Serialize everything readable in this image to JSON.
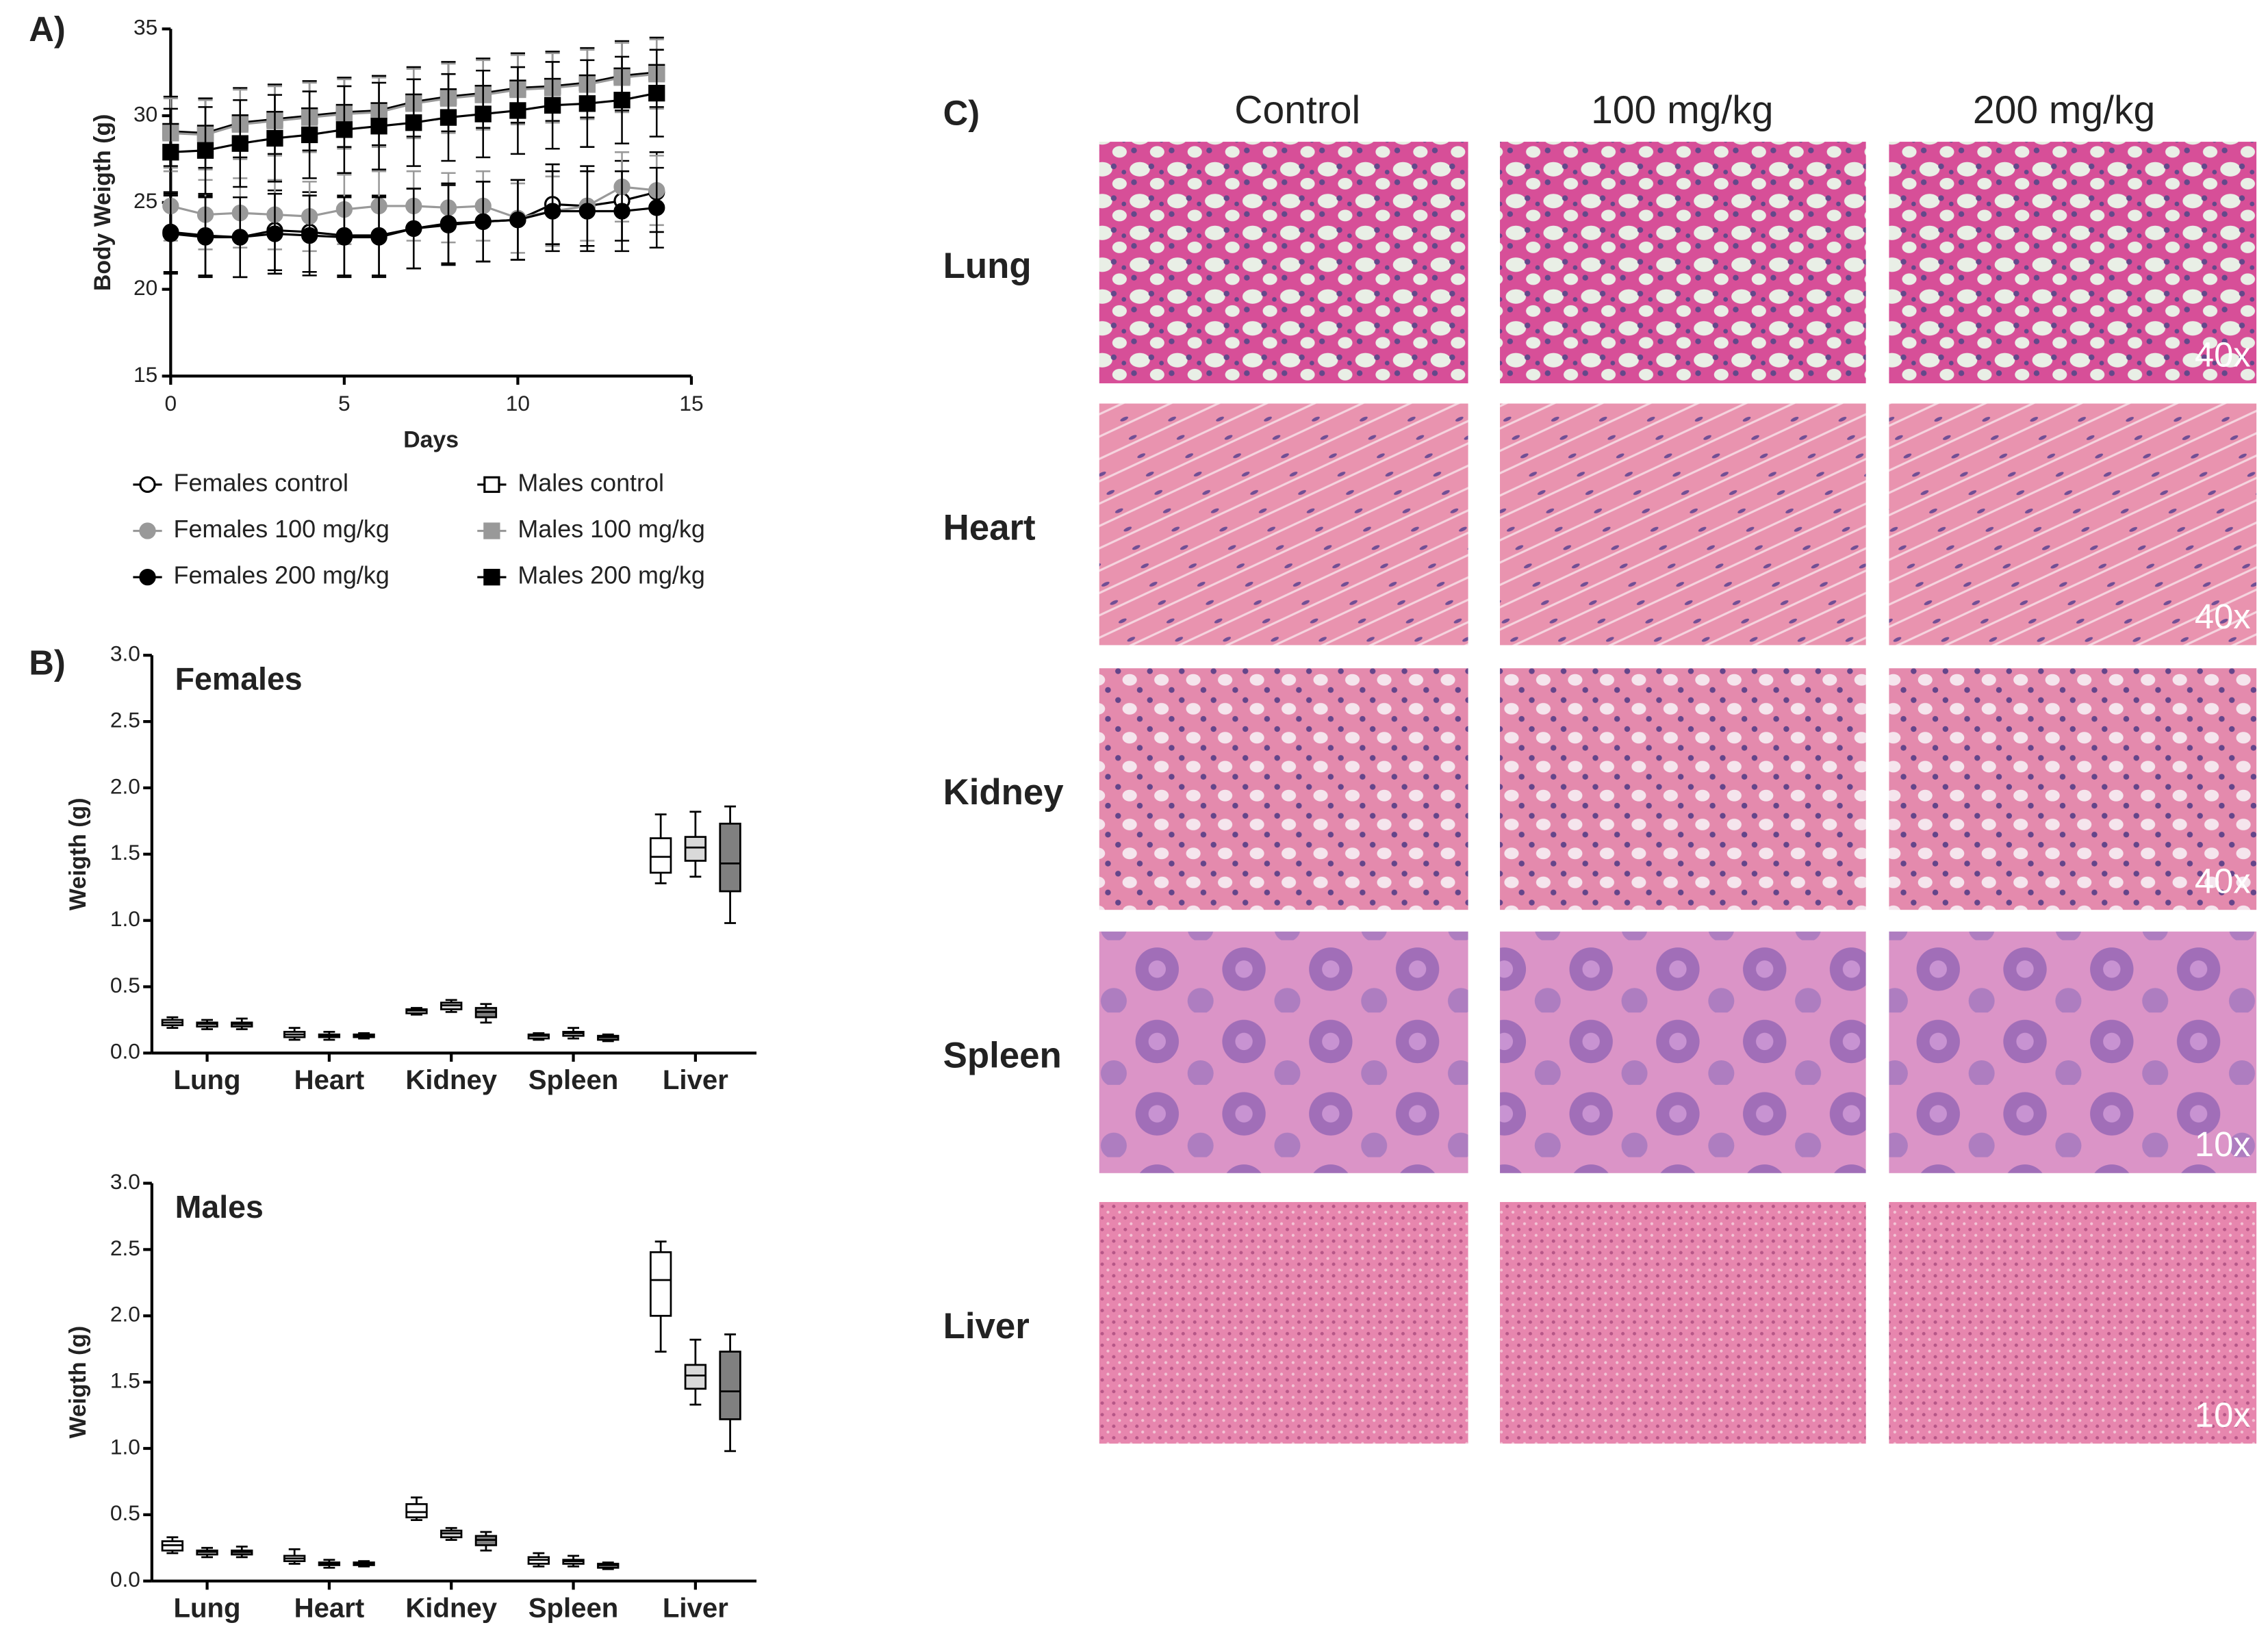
{
  "panel_labels": [
    "A)",
    "B)",
    "C)"
  ],
  "chart_data": [
    {
      "type": "line",
      "xlabel": "Days",
      "ylabel": "Body Weigth (g)",
      "x": [
        0,
        1,
        2,
        3,
        4,
        5,
        6,
        7,
        8,
        9,
        10,
        11,
        12,
        13,
        14
      ],
      "xlim": [
        0,
        15
      ],
      "xticks": [
        0,
        5,
        10,
        15
      ],
      "ylim": [
        15,
        35
      ],
      "yticks": [
        15,
        20,
        25,
        30,
        35
      ],
      "legend": "below",
      "series": [
        {
          "name": "Females control",
          "color": "#000000",
          "marker": "circle",
          "filled": false,
          "values": [
            23.3,
            23.1,
            23.0,
            23.4,
            23.3,
            23.1,
            23.1,
            23.5,
            23.7,
            23.9,
            24.0,
            24.9,
            24.8,
            25.1,
            25.6
          ],
          "errors": [
            2.3,
            2.3,
            2.3,
            2.3,
            2.3,
            2.3,
            2.3,
            2.3,
            2.3,
            2.3,
            2.3,
            2.3,
            2.3,
            2.3,
            2.3
          ]
        },
        {
          "name": "Females 100 mg/kg",
          "color": "#999999",
          "marker": "circle",
          "filled": true,
          "values": [
            24.8,
            24.3,
            24.4,
            24.3,
            24.2,
            24.6,
            24.8,
            24.8,
            24.7,
            24.8,
            24.1,
            24.5,
            24.8,
            25.9,
            25.7
          ],
          "errors": [
            2.0,
            2.0,
            2.0,
            2.0,
            2.0,
            2.0,
            2.0,
            2.0,
            2.0,
            2.0,
            2.0,
            2.0,
            2.0,
            2.0,
            2.0
          ]
        },
        {
          "name": "Females 200 mg/kg",
          "color": "#000000",
          "marker": "circle",
          "filled": true,
          "values": [
            23.2,
            23.0,
            23.0,
            23.2,
            23.1,
            23.0,
            23.0,
            23.5,
            23.8,
            23.9,
            24.0,
            24.5,
            24.5,
            24.5,
            24.7
          ],
          "errors": [
            2.3,
            2.3,
            2.3,
            2.3,
            2.3,
            2.3,
            2.3,
            2.3,
            2.3,
            2.3,
            2.3,
            2.3,
            2.3,
            2.3,
            2.3
          ]
        },
        {
          "name": "Males control",
          "color": "#000000",
          "marker": "square",
          "filled": false,
          "values": [
            29.1,
            29.0,
            29.6,
            29.8,
            30.0,
            30.2,
            30.3,
            30.8,
            31.1,
            31.3,
            31.6,
            31.7,
            31.9,
            32.3,
            32.5
          ],
          "errors": [
            2.0,
            2.0,
            2.0,
            2.0,
            2.0,
            2.0,
            2.0,
            2.0,
            2.0,
            2.0,
            2.0,
            2.0,
            2.0,
            2.0,
            2.0
          ]
        },
        {
          "name": "Males 100 mg/kg",
          "color": "#999999",
          "marker": "square",
          "filled": true,
          "values": [
            29.0,
            28.9,
            29.5,
            29.7,
            29.9,
            30.1,
            30.2,
            30.7,
            31.0,
            31.2,
            31.5,
            31.6,
            31.8,
            32.2,
            32.4
          ],
          "errors": [
            2.0,
            2.0,
            2.0,
            2.0,
            2.0,
            2.0,
            2.0,
            2.0,
            2.0,
            2.0,
            2.0,
            2.0,
            2.0,
            2.0,
            2.0
          ]
        },
        {
          "name": "Males 200 mg/kg",
          "color": "#000000",
          "marker": "square",
          "filled": true,
          "values": [
            27.9,
            28.0,
            28.4,
            28.7,
            28.9,
            29.2,
            29.4,
            29.6,
            29.9,
            30.1,
            30.3,
            30.6,
            30.7,
            30.9,
            31.3
          ],
          "errors": [
            2.5,
            2.5,
            2.5,
            2.5,
            2.5,
            2.5,
            2.5,
            2.5,
            2.5,
            2.5,
            2.5,
            2.5,
            2.5,
            2.5,
            2.5
          ]
        }
      ]
    },
    {
      "type": "box",
      "title": "Females",
      "ylabel": "Weigth (g)",
      "categories": [
        "Lung",
        "Heart",
        "Kidney",
        "Spleen",
        "Liver"
      ],
      "ylim": [
        0,
        3
      ],
      "yticks": [
        {
          "value": 0,
          "label": "0.0"
        },
        {
          "value": 0.5,
          "label": "0.5"
        },
        {
          "value": 1,
          "label": "1.0"
        },
        {
          "value": 1.5,
          "label": "1.5"
        },
        {
          "value": 2,
          "label": "2.0"
        },
        {
          "value": 2.5,
          "label": "2.5"
        },
        {
          "value": 3,
          "label": "3.0"
        }
      ],
      "series": [
        {
          "color": "#ffffff",
          "values": [
            [
              0.19,
              0.21,
              0.23,
              0.25,
              0.27
            ],
            [
              0.1,
              0.12,
              0.14,
              0.16,
              0.19
            ],
            [
              0.29,
              0.3,
              0.32,
              0.33,
              0.34
            ],
            [
              0.1,
              0.11,
              0.13,
              0.14,
              0.15
            ],
            [
              1.28,
              1.36,
              1.48,
              1.62,
              1.8
            ]
          ]
        },
        {
          "color": "#d9d9d9",
          "values": [
            [
              0.18,
              0.2,
              0.22,
              0.23,
              0.25
            ],
            [
              0.1,
              0.12,
              0.13,
              0.14,
              0.16
            ],
            [
              0.31,
              0.33,
              0.36,
              0.38,
              0.4
            ],
            [
              0.11,
              0.13,
              0.15,
              0.16,
              0.19
            ],
            [
              1.33,
              1.45,
              1.55,
              1.63,
              1.82
            ]
          ]
        },
        {
          "color": "#808080",
          "values": [
            [
              0.18,
              0.2,
              0.22,
              0.23,
              0.26
            ],
            [
              0.11,
              0.12,
              0.13,
              0.14,
              0.15
            ],
            [
              0.23,
              0.27,
              0.31,
              0.34,
              0.37
            ],
            [
              0.09,
              0.1,
              0.12,
              0.13,
              0.14
            ],
            [
              0.98,
              1.22,
              1.43,
              1.73,
              1.86
            ]
          ]
        }
      ]
    },
    {
      "type": "box",
      "title": "Males",
      "ylabel": "Weigth (g)",
      "categories": [
        "Lung",
        "Heart",
        "Kidney",
        "Spleen",
        "Liver"
      ],
      "ylim": [
        0,
        3
      ],
      "yticks": [
        {
          "value": 0,
          "label": "0.0"
        },
        {
          "value": 0.5,
          "label": "0.5"
        },
        {
          "value": 1,
          "label": "1.0"
        },
        {
          "value": 1.5,
          "label": "1.5"
        },
        {
          "value": 2,
          "label": "2.0"
        },
        {
          "value": 2.5,
          "label": "2.5"
        },
        {
          "value": 3,
          "label": "3.0"
        }
      ],
      "series": [
        {
          "color": "#ffffff",
          "values": [
            [
              0.21,
              0.23,
              0.27,
              0.3,
              0.33
            ],
            [
              0.13,
              0.15,
              0.17,
              0.19,
              0.24
            ],
            [
              0.46,
              0.48,
              0.52,
              0.58,
              0.63
            ],
            [
              0.11,
              0.13,
              0.16,
              0.18,
              0.21
            ],
            [
              1.73,
              2.0,
              2.27,
              2.48,
              2.56
            ]
          ]
        },
        {
          "color": "#d9d9d9",
          "values": [
            [
              0.18,
              0.2,
              0.22,
              0.23,
              0.25
            ],
            [
              0.1,
              0.12,
              0.13,
              0.14,
              0.16
            ],
            [
              0.31,
              0.33,
              0.36,
              0.38,
              0.4
            ],
            [
              0.11,
              0.13,
              0.15,
              0.16,
              0.19
            ],
            [
              1.33,
              1.45,
              1.55,
              1.63,
              1.82
            ]
          ]
        },
        {
          "color": "#808080",
          "values": [
            [
              0.18,
              0.2,
              0.22,
              0.23,
              0.26
            ],
            [
              0.11,
              0.12,
              0.13,
              0.14,
              0.15
            ],
            [
              0.23,
              0.27,
              0.31,
              0.34,
              0.37
            ],
            [
              0.09,
              0.1,
              0.12,
              0.13,
              0.14
            ],
            [
              0.98,
              1.22,
              1.43,
              1.73,
              1.86
            ]
          ]
        }
      ]
    }
  ],
  "panel_c": {
    "columns": [
      "Control",
      "100 mg/kg",
      "200 mg/kg"
    ],
    "rows": [
      {
        "label": "Lung",
        "magnification": "40x"
      },
      {
        "label": "Heart",
        "magnification": "40x"
      },
      {
        "label": "Kidney",
        "magnification": "40x"
      },
      {
        "label": "Spleen",
        "magnification": "10x"
      },
      {
        "label": "Liver",
        "magnification": "10x"
      }
    ]
  }
}
